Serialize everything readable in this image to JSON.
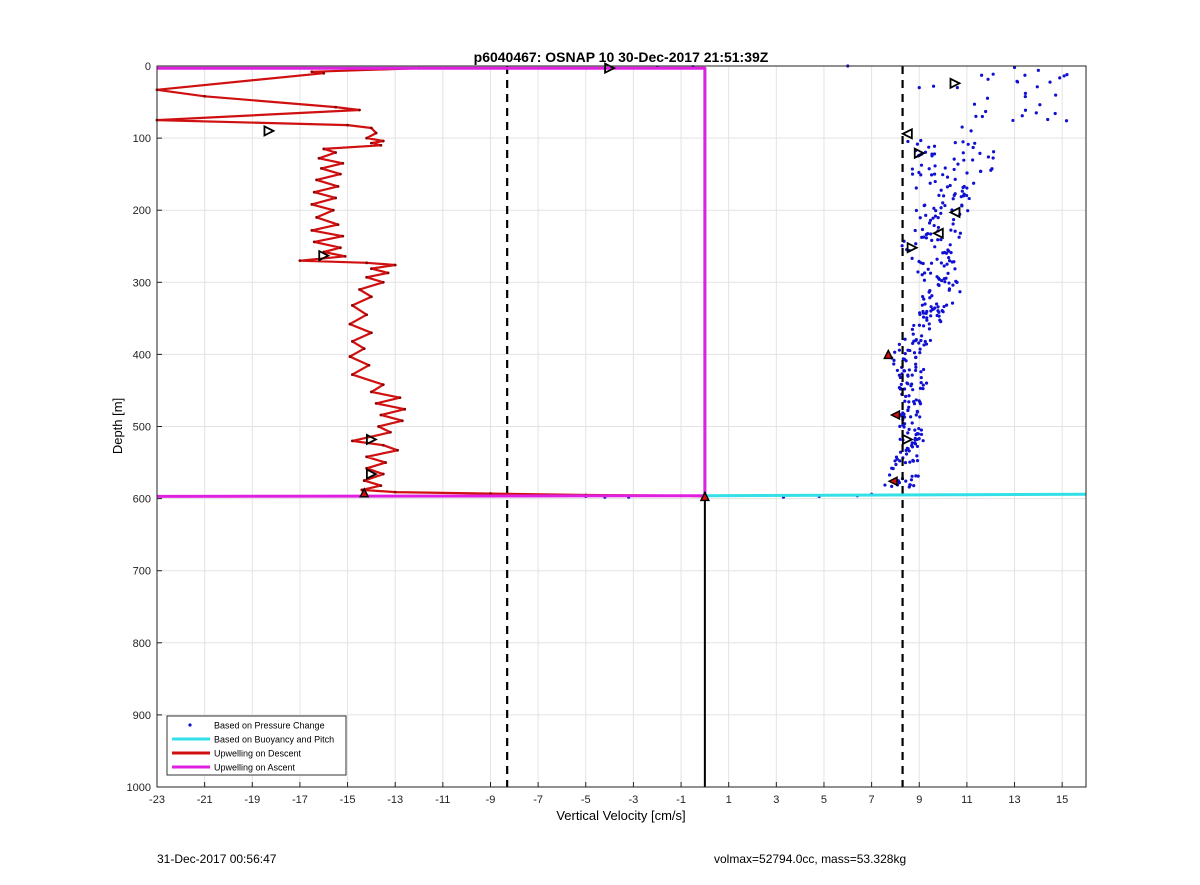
{
  "chart_data": {
    "type": "line",
    "title": "p6040467: OSNAP 10 30-Dec-2017 21:51:39Z",
    "xlabel": "Vertical Velocity [cm/s]",
    "ylabel": "Depth [m]",
    "xlim": [
      -23,
      16
    ],
    "ylim": [
      0,
      1000
    ],
    "y_reversed": true,
    "grid": true,
    "xticks": [
      -23,
      -21,
      -19,
      -17,
      -15,
      -13,
      -11,
      -9,
      -7,
      -5,
      -3,
      -1,
      1,
      3,
      5,
      7,
      9,
      11,
      13,
      15
    ],
    "yticks": [
      0,
      100,
      200,
      300,
      400,
      500,
      600,
      700,
      800,
      900,
      1000
    ],
    "legend_position": "bottom-left",
    "legend": [
      {
        "name": "Based on Pressure Change",
        "color": "#1010d0",
        "style": "dot"
      },
      {
        "name": "Based on Buoyancy and Pitch",
        "color": "#33e0e8",
        "style": "line"
      },
      {
        "name": "Upwelling on Descent",
        "color": "#d01010",
        "style": "line"
      },
      {
        "name": "Upwelling on Ascent",
        "color": "#e020e0",
        "style": "line"
      }
    ],
    "series": [
      {
        "name": "Upwelling on Descent",
        "color": "#d01010",
        "style": "line",
        "points": [
          [
            -12.0,
            3
          ],
          [
            -16.5,
            8
          ],
          [
            -16.0,
            10
          ],
          [
            -23.0,
            33
          ],
          [
            -21.0,
            42
          ],
          [
            -15.5,
            57
          ],
          [
            -14.5,
            61
          ],
          [
            -23.0,
            75
          ],
          [
            -15.0,
            82
          ],
          [
            -14.0,
            86
          ],
          [
            -13.8,
            93
          ],
          [
            -14.2,
            100
          ],
          [
            -13.5,
            104
          ],
          [
            -14.0,
            107
          ],
          [
            -13.6,
            110
          ],
          [
            -16.0,
            115
          ],
          [
            -15.5,
            120
          ],
          [
            -16.2,
            128
          ],
          [
            -15.2,
            135
          ],
          [
            -16.1,
            142
          ],
          [
            -15.3,
            150
          ],
          [
            -16.3,
            158
          ],
          [
            -15.4,
            167
          ],
          [
            -16.4,
            175
          ],
          [
            -15.5,
            183
          ],
          [
            -16.5,
            192
          ],
          [
            -15.6,
            200
          ],
          [
            -16.3,
            210
          ],
          [
            -15.4,
            220
          ],
          [
            -16.5,
            228
          ],
          [
            -15.2,
            236
          ],
          [
            -16.4,
            244
          ],
          [
            -15.3,
            252
          ],
          [
            -16.0,
            258
          ],
          [
            -15.1,
            264
          ],
          [
            -17.0,
            270
          ],
          [
            -14.2,
            273
          ],
          [
            -13.0,
            276
          ],
          [
            -14.0,
            281
          ],
          [
            -13.3,
            287
          ],
          [
            -14.2,
            293
          ],
          [
            -13.5,
            300
          ],
          [
            -14.5,
            310
          ],
          [
            -14.0,
            320
          ],
          [
            -14.8,
            332
          ],
          [
            -14.2,
            345
          ],
          [
            -14.9,
            358
          ],
          [
            -14.0,
            370
          ],
          [
            -14.8,
            382
          ],
          [
            -14.3,
            392
          ],
          [
            -14.9,
            403
          ],
          [
            -14.1,
            415
          ],
          [
            -14.8,
            428
          ],
          [
            -13.5,
            442
          ],
          [
            -14.0,
            452
          ],
          [
            -12.8,
            460
          ],
          [
            -13.8,
            468
          ],
          [
            -12.6,
            476
          ],
          [
            -13.6,
            484
          ],
          [
            -12.7,
            492
          ],
          [
            -13.7,
            500
          ],
          [
            -13.2,
            508
          ],
          [
            -14.8,
            520
          ],
          [
            -13.5,
            526
          ],
          [
            -12.9,
            533
          ],
          [
            -14.2,
            542
          ],
          [
            -13.4,
            550
          ],
          [
            -14.2,
            558
          ],
          [
            -13.5,
            566
          ],
          [
            -14.3,
            575
          ],
          [
            -13.6,
            582
          ],
          [
            -14.4,
            588
          ],
          [
            -13.0,
            591
          ],
          [
            -9.0,
            593
          ],
          [
            -5.0,
            595
          ],
          [
            -1.0,
            596
          ],
          [
            0.0,
            597
          ]
        ]
      },
      {
        "name": "Upwelling on Ascent",
        "color": "#e020e0",
        "style": "line",
        "points": [
          [
            -23.0,
            3
          ],
          [
            0.0,
            3
          ],
          [
            0.0,
            596
          ],
          [
            -23.0,
            597
          ]
        ]
      },
      {
        "name": "Based on Buoyancy and Pitch",
        "color": "#33e0e8",
        "style": "line",
        "points": [
          [
            0.0,
            3
          ],
          [
            0.0,
            596
          ],
          [
            16.0,
            594
          ]
        ]
      }
    ],
    "dashed_lines_x": [
      -8.3,
      8.3
    ],
    "solid_line_x": 0.0,
    "solid_line_y_range": [
      597,
      1000
    ],
    "pressure_points_color": "#1010d0",
    "triangle_markers": [
      {
        "dir": "right",
        "x": -4.0,
        "y": 3
      },
      {
        "dir": "right",
        "x": -18.3,
        "y": 90
      },
      {
        "dir": "right",
        "x": -16.0,
        "y": 263
      },
      {
        "dir": "right",
        "x": -14.0,
        "y": 518
      },
      {
        "dir": "right",
        "x": -14.0,
        "y": 566
      },
      {
        "dir": "right",
        "x": 10.5,
        "y": 24
      },
      {
        "dir": "left",
        "x": 8.5,
        "y": 94
      },
      {
        "dir": "right",
        "x": 9.0,
        "y": 121
      },
      {
        "dir": "left",
        "x": 10.5,
        "y": 203
      },
      {
        "dir": "left",
        "x": 9.8,
        "y": 232
      },
      {
        "dir": "right",
        "x": 8.7,
        "y": 252
      },
      {
        "dir": "right",
        "x": 8.5,
        "y": 518
      }
    ],
    "filled_markers": [
      {
        "dir": "up",
        "x": -14.3,
        "y": 592
      },
      {
        "dir": "up",
        "x": 0.0,
        "y": 597
      },
      {
        "dir": "up",
        "x": 7.7,
        "y": 400
      },
      {
        "dir": "left",
        "x": 8.0,
        "y": 484
      },
      {
        "dir": "left",
        "x": 7.9,
        "y": 576
      }
    ]
  },
  "footer": {
    "left_text": "31-Dec-2017 00:56:47",
    "right_text": "volmax=52794.0cc, mass=53.328kg"
  }
}
